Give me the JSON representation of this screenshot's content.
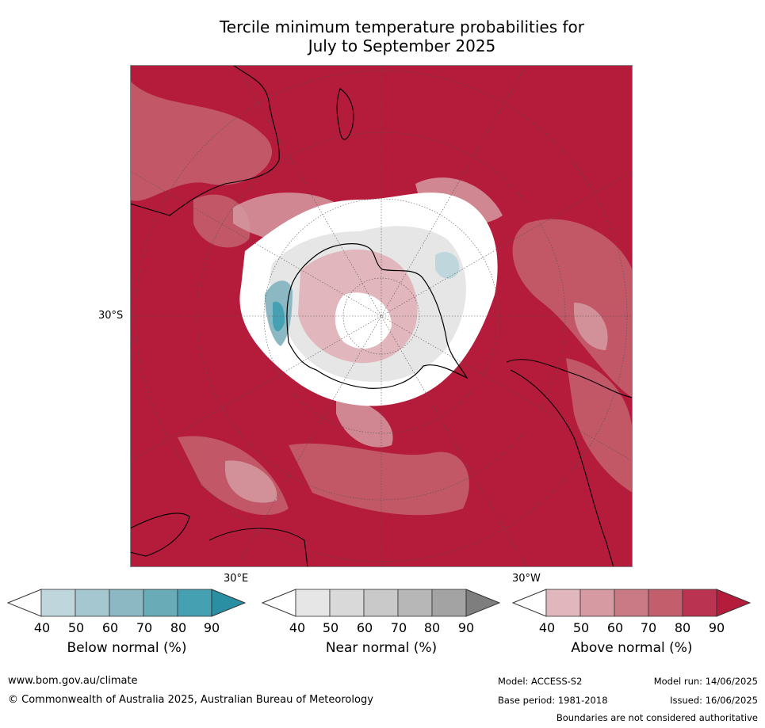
{
  "title_line1": "Tercile minimum temperature probabilities for",
  "title_line2": "July to September 2025",
  "map": {
    "lat_label": "30°S",
    "lon_label_east": "30°E",
    "lon_label_west": "30°W",
    "colors": {
      "above_dominant": "#b51c3b",
      "land_outline": "#000000"
    }
  },
  "colorbars": [
    {
      "label": "Below normal (%)",
      "ticks": [
        "40",
        "50",
        "60",
        "70",
        "80",
        "90"
      ],
      "colors": [
        "#bed6dc",
        "#a5c7cf",
        "#8cb8c4",
        "#6aabb8",
        "#45a0b2",
        "#2b8fa4"
      ]
    },
    {
      "label": "Near normal (%)",
      "ticks": [
        "40",
        "50",
        "60",
        "70",
        "80",
        "90"
      ],
      "colors": [
        "#e6e6e6",
        "#d9d9d9",
        "#c9c9c9",
        "#b7b7b7",
        "#a3a3a3",
        "#7e7e7e"
      ]
    },
    {
      "label": "Above normal (%)",
      "ticks": [
        "40",
        "50",
        "60",
        "70",
        "80",
        "90"
      ],
      "colors": [
        "#e1b7bd",
        "#d59aa2",
        "#ca7a85",
        "#c35e6c",
        "#ba3350",
        "#b51c3b"
      ]
    }
  ],
  "footer": {
    "website": "www.bom.gov.au/climate",
    "copyright": "© Commonwealth of Australia 2025, Australian Bureau of Meteorology",
    "model": "Model: ACCESS-S2",
    "model_run": "Model run: 14/06/2025",
    "base_period": "Base period: 1981-2018",
    "issued": "Issued: 16/06/2025",
    "disclaimer": "Boundaries are not considered authoritative"
  }
}
